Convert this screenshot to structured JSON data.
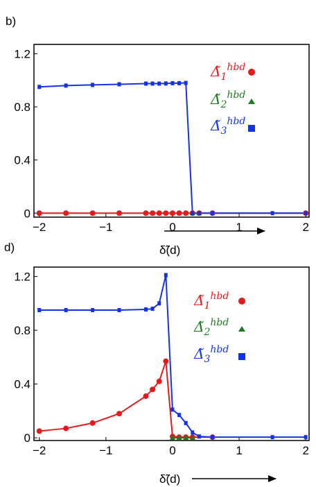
{
  "chart_data": [
    {
      "panel_label": "b)",
      "type": "line",
      "xlabel": "δ̃(d)",
      "xlim": [
        -2.08,
        2.05
      ],
      "ylim": [
        -0.03,
        1.27
      ],
      "xticks": [
        "-2",
        "-1",
        "0",
        "1",
        "2"
      ],
      "xtick_values": [
        -2,
        -1,
        0,
        1,
        2
      ],
      "yticks": [
        "0",
        "0.4",
        "0.8",
        "1.2"
      ],
      "ytick_values": [
        0,
        0.4,
        0.8,
        1.2
      ],
      "legend_position": "top-right",
      "series": [
        {
          "name": "Δ̃1 hbd",
          "color": "#e8191b",
          "marker": "circle",
          "points": [
            [
              -2,
              0
            ],
            [
              -1.6,
              0
            ],
            [
              -1.2,
              0
            ],
            [
              -0.8,
              0
            ],
            [
              -0.4,
              0
            ],
            [
              -0.3,
              0
            ],
            [
              -0.2,
              0
            ],
            [
              -0.1,
              0
            ],
            [
              0,
              0
            ],
            [
              0.1,
              0
            ],
            [
              0.2,
              0
            ],
            [
              0.3,
              0
            ],
            [
              0.4,
              0
            ],
            [
              0.6,
              0
            ],
            [
              2,
              0
            ]
          ]
        },
        {
          "name": "Δ̃2 hbd",
          "color": "#1e7a1e",
          "marker": "triangle",
          "points": [
            [
              0.3,
              0
            ],
            [
              0.4,
              0
            ]
          ]
        },
        {
          "name": "Δ̃3 hbd",
          "color": "#1432e6",
          "marker": "square",
          "points": [
            [
              -2,
              0.95
            ],
            [
              -1.6,
              0.96
            ],
            [
              -1.2,
              0.965
            ],
            [
              -0.8,
              0.97
            ],
            [
              -0.4,
              0.975
            ],
            [
              -0.3,
              0.975
            ],
            [
              -0.2,
              0.975
            ],
            [
              -0.1,
              0.976
            ],
            [
              0,
              0.978
            ],
            [
              0.1,
              0.978
            ],
            [
              0.2,
              0.98
            ],
            [
              0.3,
              0
            ],
            [
              0.4,
              0
            ],
            [
              0.6,
              0
            ],
            [
              1.5,
              0
            ],
            [
              2,
              0
            ]
          ]
        }
      ]
    },
    {
      "panel_label": "d)",
      "type": "line",
      "xlabel": "δ̃(d)",
      "xlim": [
        -2.08,
        2.05
      ],
      "ylim": [
        -0.02,
        1.27
      ],
      "xticks": [
        "-2",
        "-1",
        "0",
        "1",
        "2"
      ],
      "xtick_values": [
        -2,
        -1,
        0,
        1,
        2
      ],
      "yticks": [
        "0",
        "0.4",
        "0.8",
        "1.2"
      ],
      "ytick_values": [
        0,
        0.4,
        0.8,
        1.2
      ],
      "legend_position": "top-right",
      "series": [
        {
          "name": "Δ̃1 hbd",
          "color": "#e8191b",
          "marker": "circle",
          "points": [
            [
              -2,
              0.05
            ],
            [
              -1.6,
              0.07
            ],
            [
              -1.2,
              0.11
            ],
            [
              -0.8,
              0.18
            ],
            [
              -0.4,
              0.31
            ],
            [
              -0.3,
              0.36
            ],
            [
              -0.2,
              0.42
            ],
            [
              -0.1,
              0.57
            ],
            [
              0,
              0.01
            ],
            [
              0.1,
              0.005
            ],
            [
              0.2,
              0.005
            ],
            [
              0.3,
              0.005
            ],
            [
              0.6,
              0.005
            ]
          ]
        },
        {
          "name": "Δ̃2 hbd",
          "color": "#1e7a1e",
          "marker": "triangle",
          "points": [
            [
              0,
              0
            ],
            [
              0.1,
              0
            ],
            [
              0.2,
              0
            ],
            [
              0.3,
              0
            ]
          ]
        },
        {
          "name": "Δ̃3 hbd",
          "color": "#1432e6",
          "marker": "square",
          "points": [
            [
              -2,
              0.95
            ],
            [
              -1.6,
              0.95
            ],
            [
              -1.2,
              0.95
            ],
            [
              -0.8,
              0.95
            ],
            [
              -0.4,
              0.955
            ],
            [
              -0.3,
              0.96
            ],
            [
              -0.2,
              1.0
            ],
            [
              -0.1,
              1.21
            ],
            [
              0,
              0.21
            ],
            [
              0.1,
              0.17
            ],
            [
              0.2,
              0.11
            ],
            [
              0.3,
              0.04
            ],
            [
              0.4,
              0.01
            ],
            [
              0.6,
              0.005
            ],
            [
              1.5,
              0.005
            ],
            [
              2,
              0.005
            ]
          ]
        }
      ]
    }
  ]
}
